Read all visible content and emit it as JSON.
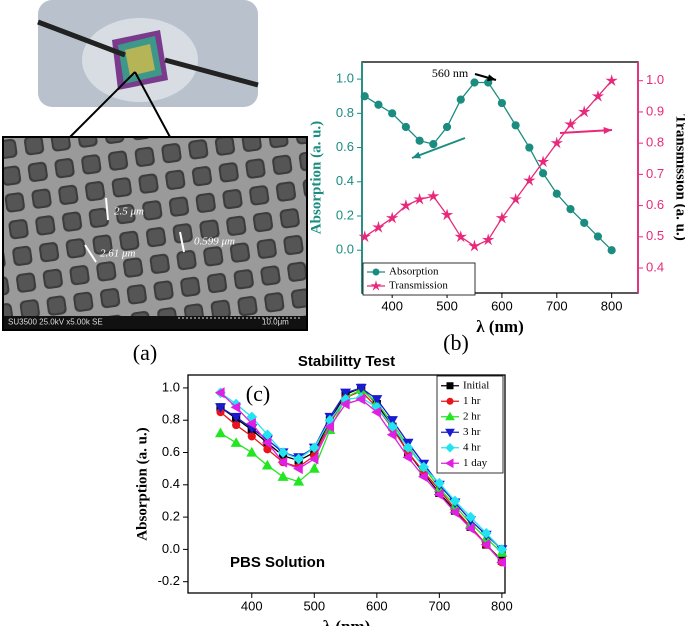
{
  "image_panel": {
    "panel_label": "(a)",
    "dimensions": [
      "2.5 μm",
      "2.61 μm",
      "0.599 μm"
    ],
    "info_bar": "SU3500 25.0kV x5.00k SE",
    "scale_bar": "10.0μm"
  },
  "chart_data": [
    {
      "type": "line",
      "panel_label": "(b)",
      "xlabel": "λ (nm)",
      "ylabel": "Absorption (a. u.)",
      "y2label": "Transmission (a. u.)",
      "annotation": "560 nm",
      "x": [
        350,
        375,
        400,
        425,
        450,
        475,
        500,
        525,
        550,
        575,
        600,
        625,
        650,
        675,
        700,
        725,
        750,
        775,
        800
      ],
      "series": [
        {
          "name": "Absorption",
          "color": "#1a8c80",
          "marker": "circle",
          "axis": "y",
          "values": [
            0.9,
            0.85,
            0.8,
            0.72,
            0.64,
            0.62,
            0.72,
            0.88,
            0.98,
            0.98,
            0.86,
            0.73,
            0.6,
            0.45,
            0.33,
            0.24,
            0.16,
            0.08,
            0.0
          ]
        },
        {
          "name": "Transmission",
          "color": "#e8287a",
          "marker": "star",
          "axis": "y2",
          "values": [
            0.5,
            0.53,
            0.56,
            0.6,
            0.62,
            0.63,
            0.57,
            0.5,
            0.47,
            0.49,
            0.56,
            0.62,
            0.68,
            0.74,
            0.8,
            0.86,
            0.9,
            0.95,
            1.0
          ]
        }
      ],
      "xlim": [
        345,
        848
      ],
      "xticks": [
        400,
        500,
        600,
        700,
        800
      ],
      "ylim": [
        -0.25,
        1.1
      ],
      "yticks": [
        {
          "value": 0,
          "label": "0.0"
        },
        0.2,
        0.4,
        0.6,
        0.8,
        {
          "value": 1,
          "label": "1.0"
        }
      ],
      "y2lim": [
        0.32,
        1.06
      ],
      "y2ticks": [
        0.4,
        0.5,
        0.6,
        0.7,
        0.8,
        0.9,
        {
          "value": 1,
          "label": "1.0"
        }
      ],
      "legend": "lower left"
    },
    {
      "type": "line",
      "panel_label": "(c)",
      "title": "Stabilitty Test",
      "annotation": "PBS Solution",
      "xlabel": "λ (nm)",
      "ylabel": "Absorption (a. u.)",
      "x": [
        350,
        375,
        400,
        425,
        450,
        475,
        500,
        525,
        550,
        575,
        600,
        625,
        650,
        675,
        700,
        725,
        750,
        775,
        800
      ],
      "series": [
        {
          "name": "Initial",
          "color": "#000000",
          "marker": "square",
          "values": [
            0.88,
            0.81,
            0.74,
            0.66,
            0.58,
            0.55,
            0.6,
            0.8,
            0.96,
            1.0,
            0.9,
            0.76,
            0.6,
            0.47,
            0.35,
            0.24,
            0.14,
            0.03,
            -0.07
          ]
        },
        {
          "name": "1 hr",
          "color": "#e8141b",
          "marker": "circle",
          "values": [
            0.85,
            0.77,
            0.7,
            0.62,
            0.54,
            0.51,
            0.58,
            0.78,
            0.94,
            0.98,
            0.88,
            0.75,
            0.6,
            0.48,
            0.37,
            0.25,
            0.14,
            0.03,
            -0.08
          ]
        },
        {
          "name": "2 hr",
          "color": "#22e622",
          "marker": "triangle-up",
          "values": [
            0.72,
            0.66,
            0.6,
            0.52,
            0.45,
            0.42,
            0.5,
            0.74,
            0.94,
            0.99,
            0.91,
            0.78,
            0.64,
            0.51,
            0.38,
            0.27,
            0.16,
            0.07,
            -0.02
          ]
        },
        {
          "name": "3 hr",
          "color": "#1a1ad0",
          "marker": "triangle-down",
          "values": [
            0.88,
            0.82,
            0.75,
            0.68,
            0.6,
            0.57,
            0.63,
            0.82,
            0.97,
            1.0,
            0.93,
            0.8,
            0.66,
            0.53,
            0.4,
            0.29,
            0.18,
            0.09,
            0.0
          ]
        },
        {
          "name": "4 hr",
          "color": "#22e4f0",
          "marker": "diamond",
          "values": [
            0.97,
            0.9,
            0.82,
            0.71,
            0.6,
            0.56,
            0.63,
            0.8,
            0.93,
            0.94,
            0.88,
            0.76,
            0.63,
            0.51,
            0.41,
            0.3,
            0.2,
            0.1,
            0.0
          ]
        },
        {
          "name": "1 day",
          "color": "#e020e0",
          "marker": "triangle-left",
          "values": [
            0.97,
            0.88,
            0.78,
            0.66,
            0.54,
            0.5,
            0.56,
            0.76,
            0.9,
            0.93,
            0.85,
            0.71,
            0.57,
            0.45,
            0.34,
            0.23,
            0.13,
            0.03,
            -0.08
          ]
        }
      ],
      "xlim": [
        298,
        805
      ],
      "xticks": [
        400,
        500,
        600,
        700,
        800
      ],
      "ylim": [
        -0.27,
        1.08
      ],
      "yticks": [
        -0.2,
        {
          "value": 0,
          "label": "0.0"
        },
        0.2,
        0.4,
        0.6,
        0.8,
        {
          "value": 1,
          "label": "1.0"
        }
      ],
      "legend": "upper right"
    }
  ]
}
